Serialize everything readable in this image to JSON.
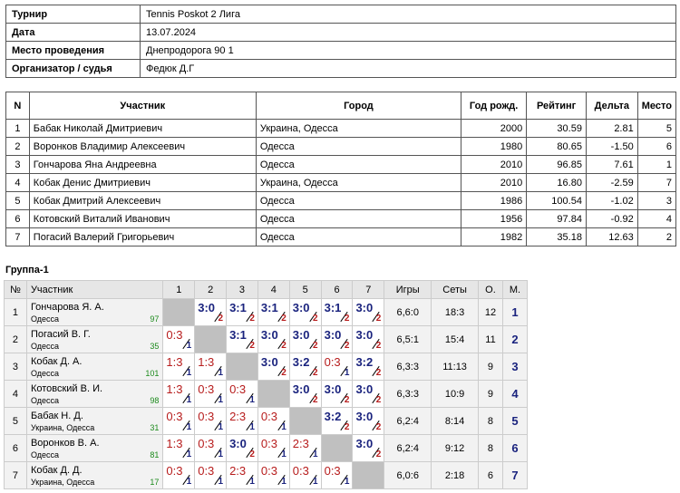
{
  "info": [
    {
      "key": "Турнир",
      "value": "Tennis Poskot 2 Лига"
    },
    {
      "key": "Дата",
      "value": "13.07.2024"
    },
    {
      "key": "Место проведения",
      "value": "Днепродорога 90 1"
    },
    {
      "key": "Организатор / судья",
      "value": "Федюк Д.Г"
    }
  ],
  "participants": {
    "headers": [
      "N",
      "Участник",
      "Город",
      "Год рожд.",
      "Рейтинг",
      "Дельта",
      "Место"
    ],
    "rows": [
      [
        "1",
        "Бабак Николай Дмитриевич",
        "Украина, Одесса",
        "2000",
        "30.59",
        "2.81",
        "5"
      ],
      [
        "2",
        "Воронков Владимир Алексеевич",
        "Одесса",
        "1980",
        "80.65",
        "-1.50",
        "6"
      ],
      [
        "3",
        "Гончарова Яна Андреевна",
        "Одесса",
        "2010",
        "96.85",
        "7.61",
        "1"
      ],
      [
        "4",
        "Кобак Денис Дмитриевич",
        "Украина, Одесса",
        "2010",
        "16.80",
        "-2.59",
        "7"
      ],
      [
        "5",
        "Кобак Дмитрий Алексеевич",
        "Одесса",
        "1986",
        "100.54",
        "-1.02",
        "3"
      ],
      [
        "6",
        "Котовский Виталий Иванович",
        "Одесса",
        "1956",
        "97.84",
        "-0.92",
        "4"
      ],
      [
        "7",
        "Погасий Валерий Григорьевич",
        "Одесса",
        "1982",
        "35.18",
        "12.63",
        "2"
      ]
    ]
  },
  "group": {
    "title": "Группа-1",
    "headers": {
      "num": "№",
      "player": "Участник",
      "cols": [
        "1",
        "2",
        "3",
        "4",
        "5",
        "6",
        "7"
      ],
      "games": "Игры",
      "sets": "Сеты",
      "points": "О.",
      "place": "М."
    },
    "rows": [
      {
        "idx": "1",
        "name": "Гончарова Я. А.",
        "city": "Одесса",
        "rating": "97",
        "cells": [
          null,
          [
            "3:0",
            "2"
          ],
          [
            "3:1",
            "2"
          ],
          [
            "3:1",
            "2"
          ],
          [
            "3:0",
            "2"
          ],
          [
            "3:1",
            "2"
          ],
          [
            "3:0",
            "2"
          ]
        ],
        "games": "6,6:0",
        "sets": "18:3",
        "points": "12",
        "place": "1"
      },
      {
        "idx": "2",
        "name": "Погасий В. Г.",
        "city": "Одесса",
        "rating": "35",
        "cells": [
          [
            "0:3",
            "1"
          ],
          null,
          [
            "3:1",
            "2"
          ],
          [
            "3:0",
            "2"
          ],
          [
            "3:0",
            "2"
          ],
          [
            "3:0",
            "2"
          ],
          [
            "3:0",
            "2"
          ]
        ],
        "games": "6,5:1",
        "sets": "15:4",
        "points": "11",
        "place": "2"
      },
      {
        "idx": "3",
        "name": "Кобак Д. А.",
        "city": "Одесса",
        "rating": "101",
        "cells": [
          [
            "1:3",
            "1"
          ],
          [
            "1:3",
            "1"
          ],
          null,
          [
            "3:0",
            "2"
          ],
          [
            "3:2",
            "2"
          ],
          [
            "0:3",
            "1"
          ],
          [
            "3:2",
            "2"
          ]
        ],
        "games": "6,3:3",
        "sets": "11:13",
        "points": "9",
        "place": "3"
      },
      {
        "idx": "4",
        "name": "Котовский В. И.",
        "city": "Одесса",
        "rating": "98",
        "cells": [
          [
            "1:3",
            "1"
          ],
          [
            "0:3",
            "1"
          ],
          [
            "0:3",
            "1"
          ],
          null,
          [
            "3:0",
            "2"
          ],
          [
            "3:0",
            "2"
          ],
          [
            "3:0",
            "2"
          ]
        ],
        "games": "6,3:3",
        "sets": "10:9",
        "points": "9",
        "place": "4"
      },
      {
        "idx": "5",
        "name": "Бабак Н. Д.",
        "city": "Украина, Одесса",
        "rating": "31",
        "cells": [
          [
            "0:3",
            "1"
          ],
          [
            "0:3",
            "1"
          ],
          [
            "2:3",
            "1"
          ],
          [
            "0:3",
            "1"
          ],
          null,
          [
            "3:2",
            "2"
          ],
          [
            "3:0",
            "2"
          ]
        ],
        "games": "6,2:4",
        "sets": "8:14",
        "points": "8",
        "place": "5"
      },
      {
        "idx": "6",
        "name": "Воронков В. А.",
        "city": "Одесса",
        "rating": "81",
        "cells": [
          [
            "1:3",
            "1"
          ],
          [
            "0:3",
            "1"
          ],
          [
            "3:0",
            "2"
          ],
          [
            "0:3",
            "1"
          ],
          [
            "2:3",
            "1"
          ],
          null,
          [
            "3:0",
            "2"
          ]
        ],
        "games": "6,2:4",
        "sets": "9:12",
        "points": "8",
        "place": "6"
      },
      {
        "idx": "7",
        "name": "Кобак Д. Д.",
        "city": "Украина, Одесса",
        "rating": "17",
        "cells": [
          [
            "0:3",
            "1"
          ],
          [
            "0:3",
            "1"
          ],
          [
            "2:3",
            "1"
          ],
          [
            "0:3",
            "1"
          ],
          [
            "0:3",
            "1"
          ],
          [
            "0:3",
            "1"
          ],
          null
        ],
        "games": "6,0:6",
        "sets": "2:18",
        "points": "6",
        "place": "7"
      }
    ]
  }
}
